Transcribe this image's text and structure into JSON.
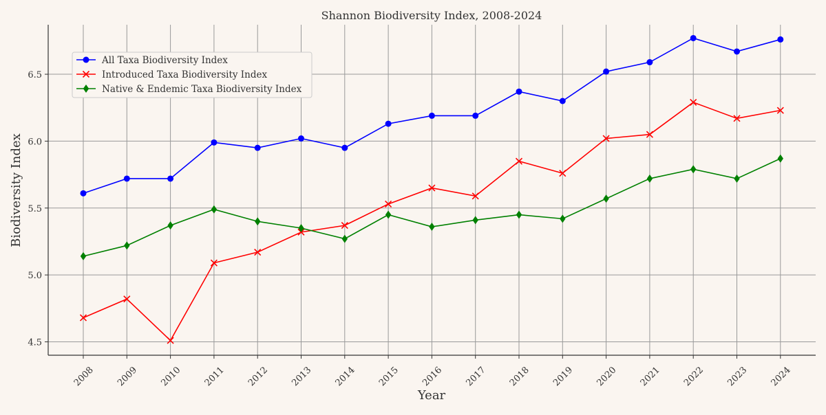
{
  "chart_data": {
    "type": "line",
    "title": "Shannon Biodiversity Index, 2008-2024",
    "xlabel": "Year",
    "ylabel": "Biodiversity Index",
    "categories": [
      "2008",
      "2009",
      "2010",
      "2011",
      "2012",
      "2013",
      "2014",
      "2015",
      "2016",
      "2017",
      "2018",
      "2019",
      "2020",
      "2021",
      "2022",
      "2023",
      "2024"
    ],
    "ylim": [
      4.4,
      6.87
    ],
    "yticks": [
      4.5,
      5.0,
      5.5,
      6.0,
      6.5
    ],
    "ytick_labels": [
      "4.5",
      "5.0",
      "5.5",
      "6.0",
      "6.5"
    ],
    "grid": true,
    "legend_position": "top-left",
    "series": [
      {
        "name": "All Taxa Biodiversity Index",
        "color": "#0000ff",
        "marker": "circle",
        "values": [
          5.61,
          5.72,
          5.72,
          5.99,
          5.95,
          6.02,
          5.95,
          6.13,
          6.19,
          6.19,
          6.37,
          6.3,
          6.52,
          6.59,
          6.77,
          6.67,
          6.76
        ]
      },
      {
        "name": "Introduced Taxa Biodiversity Index",
        "color": "#ff0000",
        "marker": "x",
        "values": [
          4.68,
          4.82,
          4.51,
          5.09,
          5.17,
          5.32,
          5.37,
          5.53,
          5.65,
          5.59,
          5.85,
          5.76,
          6.02,
          6.05,
          6.29,
          6.17,
          6.23
        ]
      },
      {
        "name": "Native & Endemic Taxa Biodiversity Index",
        "color": "#008000",
        "marker": "diamond",
        "values": [
          5.14,
          5.22,
          5.37,
          5.49,
          5.4,
          5.35,
          5.27,
          5.45,
          5.36,
          5.41,
          5.45,
          5.42,
          5.57,
          5.72,
          5.79,
          5.72,
          5.87
        ]
      }
    ]
  }
}
